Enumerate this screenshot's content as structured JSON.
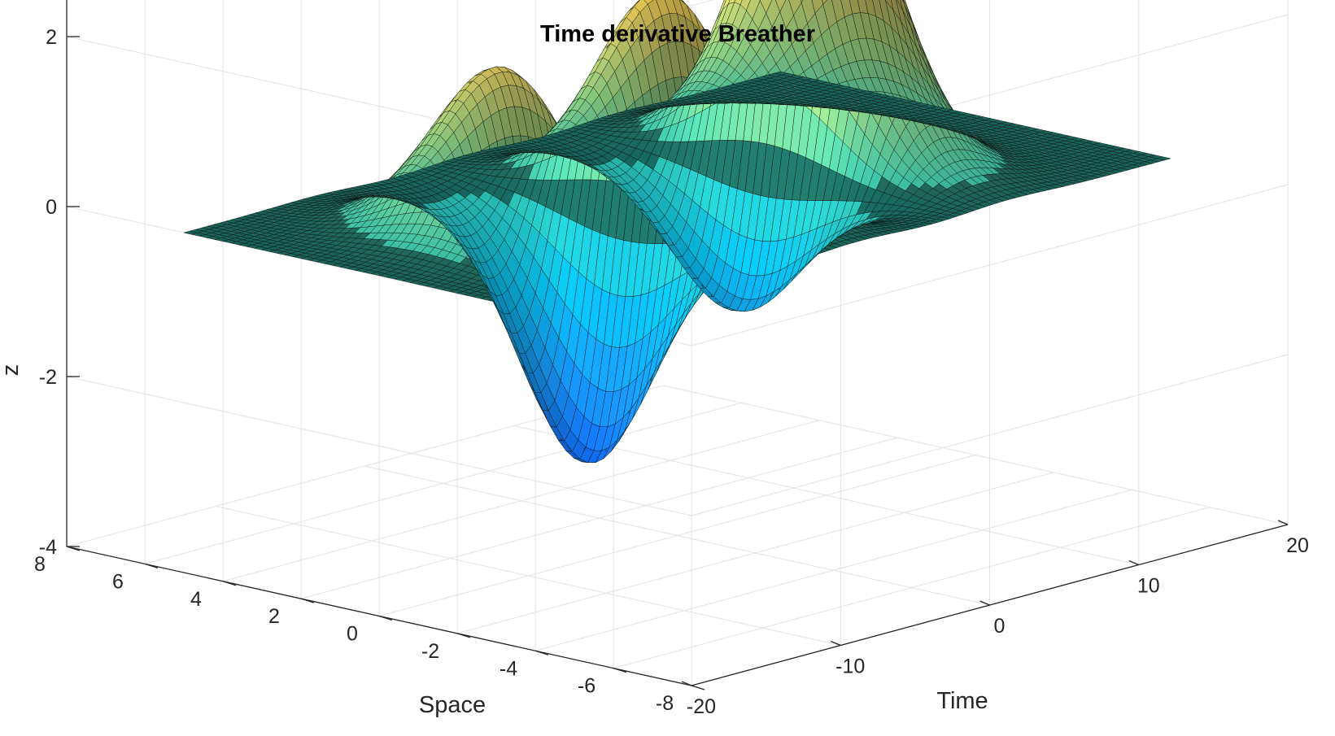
{
  "chart_data": {
    "type": "surface",
    "title": "Time derivative Breather",
    "xlabel": "Time",
    "ylabel": "Space",
    "zlabel": "z",
    "xlim": [
      -20,
      20
    ],
    "ylim": [
      -8,
      8
    ],
    "zlim": [
      -4,
      4
    ],
    "xticks": [
      "-20",
      "-10",
      "0",
      "10",
      "20"
    ],
    "yticks": [
      "-8",
      "-6",
      "-4",
      "-2",
      "0",
      "2",
      "4",
      "6",
      "8"
    ],
    "zticks": [
      "-4",
      "-2",
      "0",
      "2",
      "4"
    ],
    "grid": true,
    "colormap": "parula",
    "colormap_colors": [
      "#352a87",
      "#0f5cdd",
      "#1481d6",
      "#06a4ca",
      "#2eb7a4",
      "#87bf77",
      "#d1bb59",
      "#fec832",
      "#f9fb0e"
    ],
    "surface_extent": {
      "time": [
        -20,
        20
      ],
      "space": [
        -5,
        5
      ]
    },
    "features": [
      {
        "kind": "peak",
        "time": -11,
        "space": 0,
        "z": 2.5
      },
      {
        "kind": "peak",
        "time": -1,
        "space": 0,
        "z": 3.5
      },
      {
        "kind": "peak",
        "time": 9,
        "space": 0,
        "z": 4.5
      },
      {
        "kind": "trough",
        "time": -6,
        "space": 0,
        "z": -3.8
      },
      {
        "kind": "trough",
        "time": 4,
        "space": 0,
        "z": -2.8
      }
    ],
    "view": {
      "azimuth_deg": -37.5,
      "elevation_deg": 30
    }
  }
}
